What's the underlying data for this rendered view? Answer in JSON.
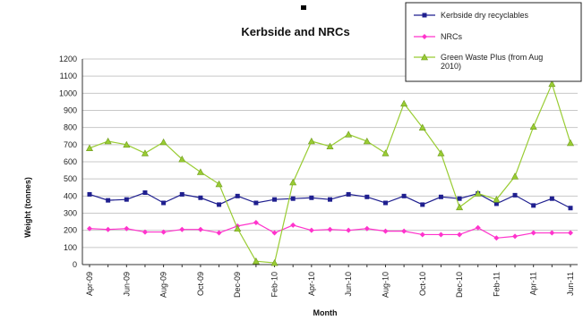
{
  "chart_data": {
    "type": "line",
    "title": "Kerbside and NRCs",
    "xlabel": "Month",
    "ylabel": "Weight (tonnes)",
    "ylim": [
      0,
      1200
    ],
    "yticks": [
      0,
      100,
      200,
      300,
      400,
      500,
      600,
      700,
      800,
      900,
      1000,
      1100,
      1200
    ],
    "grid": true,
    "legend_position": "top-right",
    "x": [
      "Apr-09",
      "May-09",
      "Jun-09",
      "Jul-09",
      "Aug-09",
      "Sep-09",
      "Oct-09",
      "Nov-09",
      "Dec-09",
      "Jan-10",
      "Feb-10",
      "Mar-10",
      "Apr-10",
      "May-10",
      "Jun-10",
      "Jul-10",
      "Aug-10",
      "Sep-10",
      "Oct-10",
      "Nov-10",
      "Dec-10",
      "Jan-11",
      "Feb-11",
      "Mar-11",
      "Apr-11",
      "May-11",
      "Jun-11"
    ],
    "x_tick_labels": [
      "Apr-09",
      "",
      "Jun-09",
      "",
      "Aug-09",
      "",
      "Oct-09",
      "",
      "Dec-09",
      "",
      "Feb-10",
      "",
      "Apr-10",
      "",
      "Jun-10",
      "",
      "Aug-10",
      "",
      "Oct-10",
      "",
      "Dec-10",
      "",
      "Feb-11",
      "",
      "Apr-11",
      "",
      "Jun-11"
    ],
    "series": [
      {
        "name": "Kerbside dry recyclables",
        "color": "#1f1f8f",
        "marker": "square",
        "values": [
          410,
          375,
          380,
          420,
          360,
          410,
          390,
          350,
          400,
          360,
          380,
          385,
          390,
          380,
          410,
          395,
          360,
          400,
          350,
          395,
          385,
          415,
          355,
          405,
          345,
          385,
          330
        ]
      },
      {
        "name": "NRCs",
        "color": "#ff33cc",
        "marker": "diamond",
        "values": [
          210,
          205,
          210,
          190,
          190,
          205,
          205,
          185,
          225,
          245,
          185,
          230,
          200,
          205,
          200,
          210,
          195,
          195,
          175,
          175,
          175,
          215,
          155,
          165,
          185,
          185,
          185
        ]
      },
      {
        "name": "Green Waste Plus (from Aug 2010)",
        "color": "#99cc33",
        "marker": "triangle",
        "values": [
          680,
          720,
          700,
          650,
          715,
          615,
          540,
          470,
          210,
          20,
          10,
          480,
          720,
          690,
          760,
          720,
          650,
          940,
          800,
          650,
          335,
          415,
          380,
          515,
          805,
          1055,
          710
        ]
      }
    ]
  }
}
